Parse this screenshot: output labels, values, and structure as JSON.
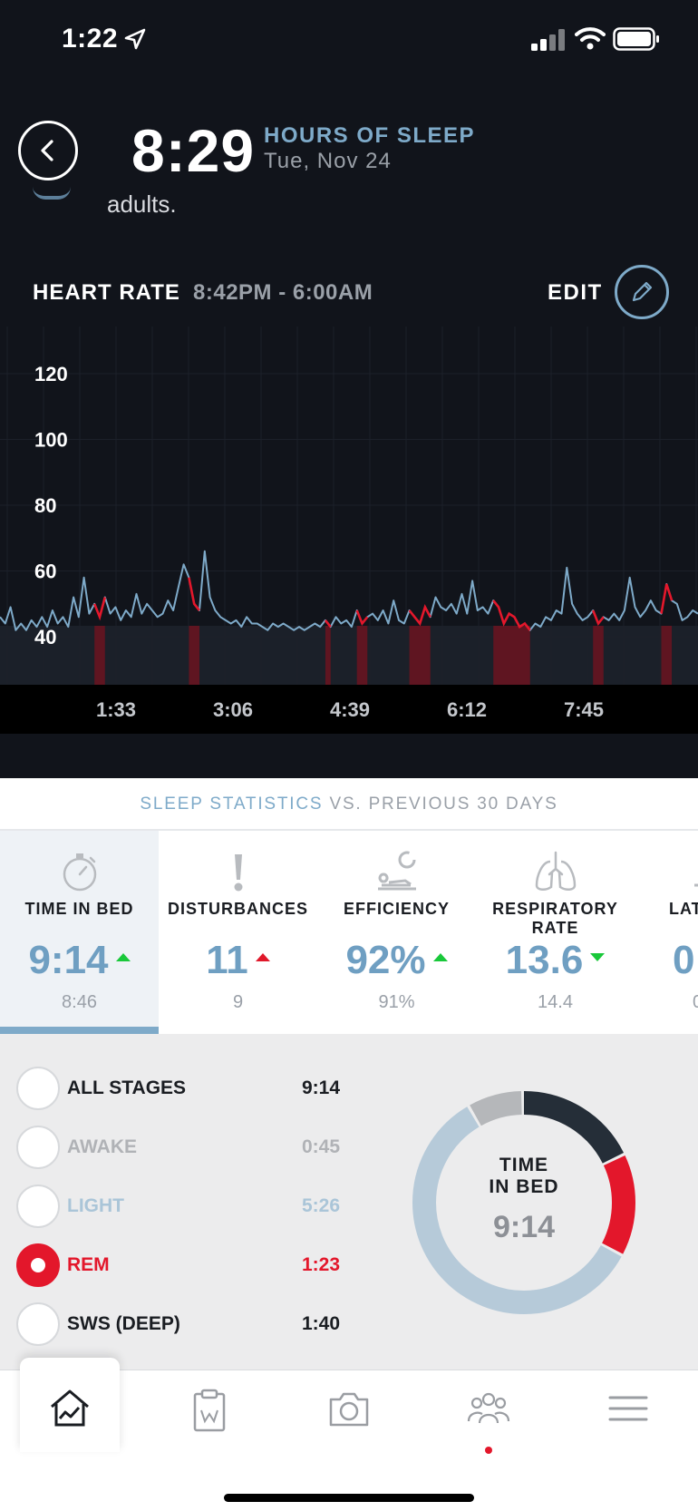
{
  "status_bar": {
    "time": "1:22"
  },
  "header": {
    "hours": "8:29",
    "hours_label": "HOURS OF SLEEP",
    "date": "Tue, Nov 24",
    "partial_text": "adults."
  },
  "heart_rate": {
    "title": "HEART RATE",
    "range": "8:42PM - 6:00AM",
    "edit_label": "EDIT"
  },
  "chart_data": {
    "type": "line",
    "y_ticks": [
      "120",
      "100",
      "80",
      "60",
      "40"
    ],
    "y_values": [
      120,
      100,
      80,
      60,
      40
    ],
    "x_ticks": [
      "1:33",
      "3:06",
      "4:39",
      "6:12",
      "7:45"
    ],
    "ylim": [
      30,
      130
    ],
    "grid": true,
    "line_color": "#7eaac9",
    "rem_color": "#e3172b",
    "series": [
      {
        "values": [
          46,
          44,
          49,
          42,
          44,
          42,
          45,
          43,
          46,
          43,
          48,
          44,
          46,
          43,
          52,
          46,
          58,
          47,
          50,
          46,
          52,
          47,
          49,
          45,
          48,
          46,
          53,
          47,
          50,
          48,
          46,
          47,
          51,
          48,
          55,
          62,
          58,
          50,
          48,
          66,
          52,
          48,
          46,
          45,
          44,
          45,
          43,
          46,
          44,
          44,
          43,
          42,
          44,
          43,
          44,
          43,
          42,
          43,
          42,
          43,
          44,
          43,
          45,
          43,
          46,
          44,
          45,
          43,
          48,
          44,
          46,
          47,
          45,
          48,
          44,
          51,
          45,
          44,
          48,
          46,
          44,
          49,
          46,
          52,
          49,
          48,
          50,
          47,
          53,
          47,
          57,
          48,
          49,
          47,
          51,
          49,
          44,
          47,
          46,
          43,
          44,
          42,
          44,
          43,
          46,
          45,
          48,
          47,
          61,
          50,
          47,
          45,
          46,
          48,
          44,
          46,
          45,
          47,
          45,
          48,
          58,
          49,
          46,
          48,
          51,
          48,
          47,
          56,
          51,
          50,
          45,
          46,
          48,
          47
        ]
      }
    ],
    "rem_ranges": [
      [
        18,
        20
      ],
      [
        36,
        38
      ],
      [
        62,
        63
      ],
      [
        68,
        70
      ],
      [
        78,
        82
      ],
      [
        94,
        101
      ],
      [
        113,
        115
      ],
      [
        126,
        128
      ]
    ]
  },
  "stats": {
    "title": "SLEEP STATISTICS",
    "comparison": "VS. PREVIOUS 30 DAYS",
    "metrics": [
      {
        "label": "TIME IN BED",
        "value": "9:14",
        "prev": "8:46",
        "trend": "up",
        "trend_color": "#19c83a",
        "icon": "stopwatch-icon"
      },
      {
        "label": "DISTURBANCES",
        "value": "11",
        "prev": "9",
        "trend": "up",
        "trend_color": "#e0182a",
        "icon": "exclamation-icon"
      },
      {
        "label": "EFFICIENCY",
        "value": "92%",
        "prev": "91%",
        "trend": "up",
        "trend_color": "#19c83a",
        "icon": "sleeper-icon"
      },
      {
        "label": "RESPIRATORY",
        "label2": "RATE",
        "value": "13.6",
        "prev": "14.4",
        "trend": "down",
        "trend_color": "#19c83a",
        "icon": "lungs-icon"
      },
      {
        "label": "LAT",
        "value": "0",
        "prev": "0",
        "icon": "latency-icon"
      }
    ]
  },
  "stages": {
    "items": [
      {
        "name": "ALL STAGES",
        "duration": "9:14",
        "color": "#1a1d22",
        "selected": false
      },
      {
        "name": "AWAKE",
        "duration": "0:45",
        "color": "#b0b2b6",
        "selected": false
      },
      {
        "name": "LIGHT",
        "duration": "5:26",
        "color": "#aac5d8",
        "selected": false
      },
      {
        "name": "REM",
        "duration": "1:23",
        "color": "#e3172b",
        "selected": true
      },
      {
        "name": "SWS (DEEP)",
        "duration": "1:40",
        "color": "#1a1d22",
        "selected": false
      }
    ],
    "donut": {
      "label_line1": "TIME",
      "label_line2": "IN BED",
      "value": "9:14",
      "segments": [
        {
          "name": "SWS (DEEP)",
          "minutes": 100,
          "color": "#252e38"
        },
        {
          "name": "REM",
          "minutes": 83,
          "color": "#e3172b"
        },
        {
          "name": "LIGHT",
          "minutes": 326,
          "color": "#b6cad9"
        },
        {
          "name": "AWAKE",
          "minutes": 45,
          "color": "#b5b7ba"
        }
      ]
    }
  },
  "tabbar": {
    "tabs": [
      "home-chart-icon",
      "clipboard-icon",
      "camera-icon",
      "community-icon",
      "menu-icon"
    ]
  }
}
